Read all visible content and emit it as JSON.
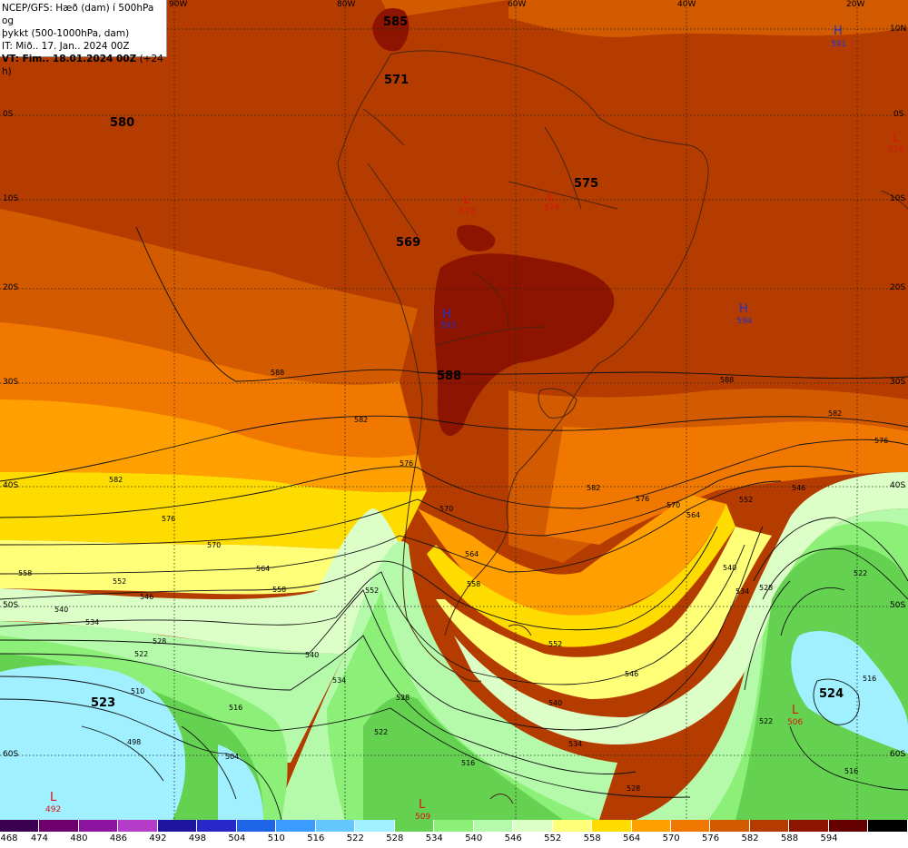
{
  "header": {
    "line1": "NCEP/GFS: Hæð (dam) í 500hPa og",
    "line2": "þykkt (500-1000hPa, dam)",
    "line3": "IT: Mið.. 17. Jan.. 2024 00Z",
    "line4_bold": "VT: Fim.. 18.01.2024 00Z",
    "line4_rest": " (+24 h)"
  },
  "axes": {
    "longitude_labels": [
      "90W",
      "80W",
      "60W",
      "40W",
      "20W"
    ],
    "latitude_labels": [
      "10N",
      "0S",
      "10S",
      "20S",
      "30S",
      "40S",
      "50S",
      "60S"
    ]
  },
  "height_labels": [
    "585",
    "571",
    "580",
    "575",
    "569",
    "588",
    "523",
    "524"
  ],
  "pressure_centers": [
    {
      "type": "H",
      "value": "591",
      "color": "#2233cc"
    },
    {
      "type": "H",
      "value": "593",
      "color": "#2233cc"
    },
    {
      "type": "H",
      "value": "594",
      "color": "#2233cc"
    },
    {
      "type": "L",
      "value": "572",
      "color": "#dd1111"
    },
    {
      "type": "L",
      "value": "574",
      "color": "#dd1111"
    },
    {
      "type": "L",
      "value": "574",
      "color": "#dd1111"
    },
    {
      "type": "L",
      "value": "506",
      "color": "#dd1111"
    },
    {
      "type": "L",
      "value": "509",
      "color": "#dd1111"
    },
    {
      "type": "L",
      "value": "492",
      "color": "#dd1111"
    }
  ],
  "thickness_contour_labels": [
    "588",
    "582",
    "576",
    "570",
    "564",
    "558",
    "552",
    "546",
    "540",
    "534",
    "528",
    "522",
    "516",
    "510",
    "504",
    "498"
  ],
  "legend": {
    "values": [
      "468",
      "474",
      "480",
      "486",
      "492",
      "498",
      "504",
      "510",
      "516",
      "522",
      "528",
      "534",
      "540",
      "546",
      "552",
      "558",
      "564",
      "570",
      "576",
      "582",
      "588",
      "594"
    ],
    "colors": [
      "#3c0050",
      "#6e006e",
      "#8c14a0",
      "#b43cc8",
      "#1e14a0",
      "#2828c8",
      "#1e64e6",
      "#3c9bff",
      "#64c8ff",
      "#a0f0ff",
      "#64d250",
      "#8cf078",
      "#b4faaa",
      "#dcffc8",
      "#ffff78",
      "#ffdc00",
      "#ffa000",
      "#f07800",
      "#d25a00",
      "#b43c00",
      "#8c1400",
      "#640000",
      "#000000"
    ]
  },
  "shading_colors": {
    "c594": "#640000",
    "c588": "#8c1400",
    "c582": "#b43c00",
    "c576": "#d25a00",
    "c570": "#f07800",
    "c564": "#ffa000",
    "c558": "#ffdc00",
    "c552": "#ffff78",
    "c546": "#dcffc8",
    "c540": "#b4faaa",
    "c534": "#8cf078",
    "c528": "#64d250",
    "c522": "#a0f0ff"
  }
}
